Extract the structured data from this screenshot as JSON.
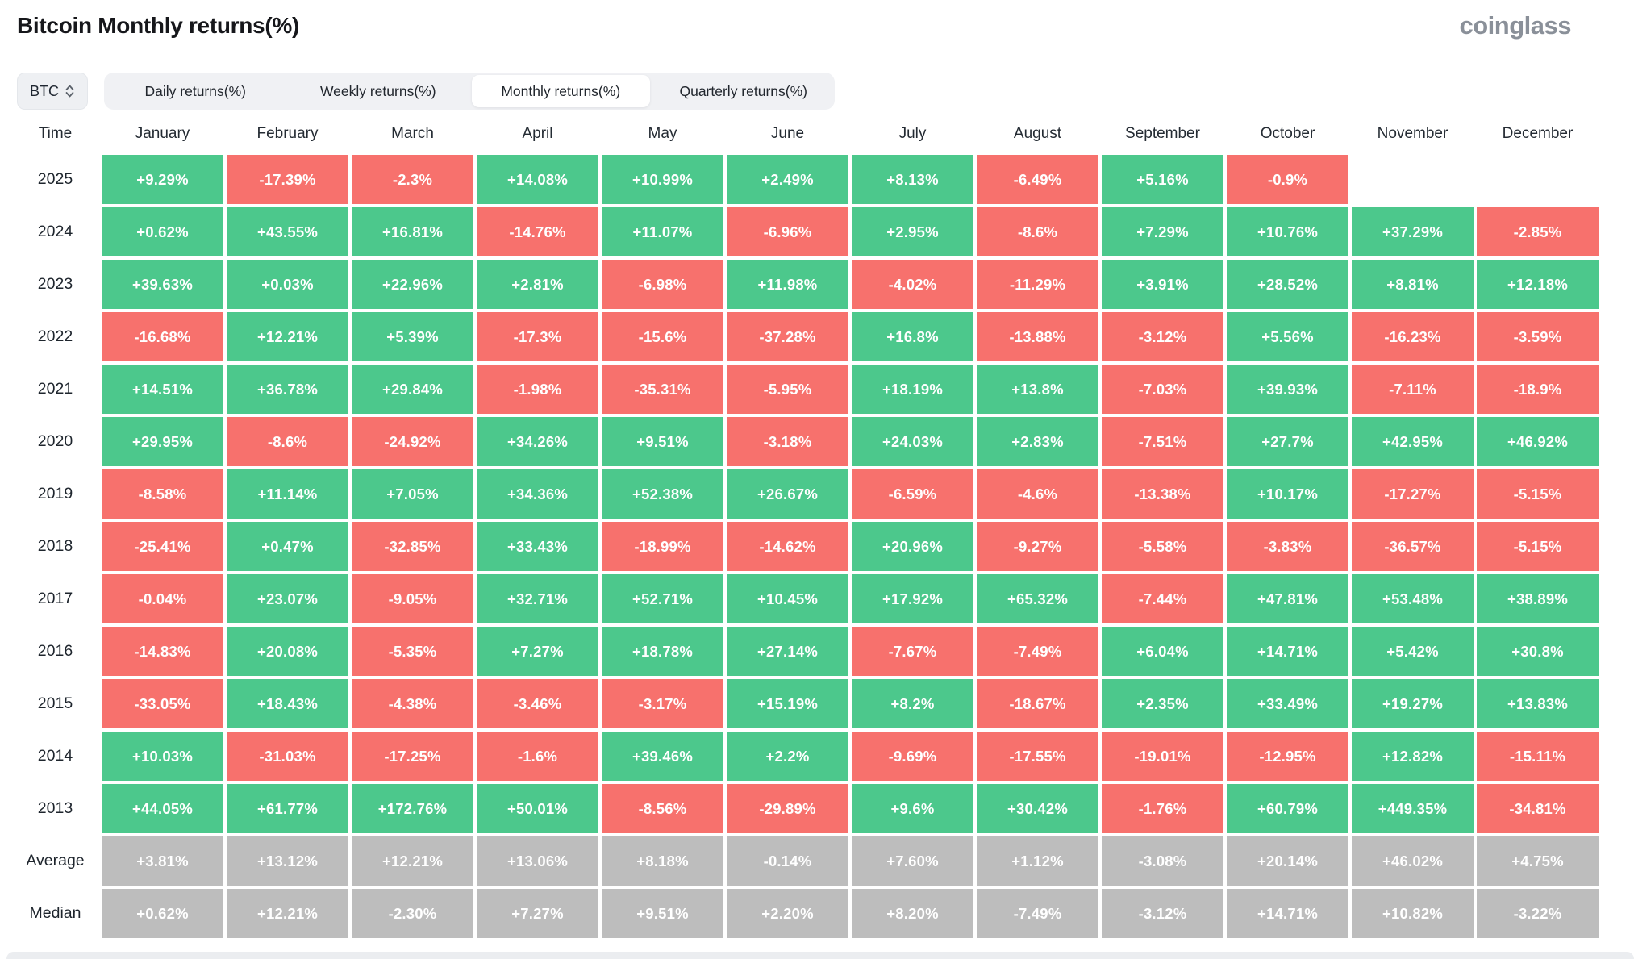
{
  "title": "Bitcoin Monthly returns(%)",
  "logo": "coinglass",
  "colors": {
    "positive": "#4cc88c",
    "negative": "#f7716d",
    "summary": "#bdbdbd"
  },
  "controls": {
    "coin_selector": "BTC",
    "tabs": [
      {
        "id": "daily-returns",
        "label": "Daily returns(%)",
        "active": false
      },
      {
        "id": "weekly-returns",
        "label": "Weekly returns(%)",
        "active": false
      },
      {
        "id": "monthly-returns",
        "label": "Monthly returns(%)",
        "active": true
      },
      {
        "id": "quarterly-returns",
        "label": "Quarterly returns(%)",
        "active": false
      }
    ]
  },
  "table": {
    "columns": [
      "Time",
      "January",
      "February",
      "March",
      "April",
      "May",
      "June",
      "July",
      "August",
      "September",
      "October",
      "November",
      "December"
    ],
    "rows": [
      {
        "label": "2025",
        "type": "year",
        "cells": [
          "+9.29%",
          "-17.39%",
          "-2.3%",
          "+14.08%",
          "+10.99%",
          "+2.49%",
          "+8.13%",
          "-6.49%",
          "+5.16%",
          "-0.9%",
          "",
          ""
        ]
      },
      {
        "label": "2024",
        "type": "year",
        "cells": [
          "+0.62%",
          "+43.55%",
          "+16.81%",
          "-14.76%",
          "+11.07%",
          "-6.96%",
          "+2.95%",
          "-8.6%",
          "+7.29%",
          "+10.76%",
          "+37.29%",
          "-2.85%"
        ]
      },
      {
        "label": "2023",
        "type": "year",
        "cells": [
          "+39.63%",
          "+0.03%",
          "+22.96%",
          "+2.81%",
          "-6.98%",
          "+11.98%",
          "-4.02%",
          "-11.29%",
          "+3.91%",
          "+28.52%",
          "+8.81%",
          "+12.18%"
        ]
      },
      {
        "label": "2022",
        "type": "year",
        "cells": [
          "-16.68%",
          "+12.21%",
          "+5.39%",
          "-17.3%",
          "-15.6%",
          "-37.28%",
          "+16.8%",
          "-13.88%",
          "-3.12%",
          "+5.56%",
          "-16.23%",
          "-3.59%"
        ]
      },
      {
        "label": "2021",
        "type": "year",
        "cells": [
          "+14.51%",
          "+36.78%",
          "+29.84%",
          "-1.98%",
          "-35.31%",
          "-5.95%",
          "+18.19%",
          "+13.8%",
          "-7.03%",
          "+39.93%",
          "-7.11%",
          "-18.9%"
        ]
      },
      {
        "label": "2020",
        "type": "year",
        "cells": [
          "+29.95%",
          "-8.6%",
          "-24.92%",
          "+34.26%",
          "+9.51%",
          "-3.18%",
          "+24.03%",
          "+2.83%",
          "-7.51%",
          "+27.7%",
          "+42.95%",
          "+46.92%"
        ]
      },
      {
        "label": "2019",
        "type": "year",
        "cells": [
          "-8.58%",
          "+11.14%",
          "+7.05%",
          "+34.36%",
          "+52.38%",
          "+26.67%",
          "-6.59%",
          "-4.6%",
          "-13.38%",
          "+10.17%",
          "-17.27%",
          "-5.15%"
        ]
      },
      {
        "label": "2018",
        "type": "year",
        "cells": [
          "-25.41%",
          "+0.47%",
          "-32.85%",
          "+33.43%",
          "-18.99%",
          "-14.62%",
          "+20.96%",
          "-9.27%",
          "-5.58%",
          "-3.83%",
          "-36.57%",
          "-5.15%"
        ]
      },
      {
        "label": "2017",
        "type": "year",
        "cells": [
          "-0.04%",
          "+23.07%",
          "-9.05%",
          "+32.71%",
          "+52.71%",
          "+10.45%",
          "+17.92%",
          "+65.32%",
          "-7.44%",
          "+47.81%",
          "+53.48%",
          "+38.89%"
        ]
      },
      {
        "label": "2016",
        "type": "year",
        "cells": [
          "-14.83%",
          "+20.08%",
          "-5.35%",
          "+7.27%",
          "+18.78%",
          "+27.14%",
          "-7.67%",
          "-7.49%",
          "+6.04%",
          "+14.71%",
          "+5.42%",
          "+30.8%"
        ]
      },
      {
        "label": "2015",
        "type": "year",
        "cells": [
          "-33.05%",
          "+18.43%",
          "-4.38%",
          "-3.46%",
          "-3.17%",
          "+15.19%",
          "+8.2%",
          "-18.67%",
          "+2.35%",
          "+33.49%",
          "+19.27%",
          "+13.83%"
        ]
      },
      {
        "label": "2014",
        "type": "year",
        "cells": [
          "+10.03%",
          "-31.03%",
          "-17.25%",
          "-1.6%",
          "+39.46%",
          "+2.2%",
          "-9.69%",
          "-17.55%",
          "-19.01%",
          "-12.95%",
          "+12.82%",
          "-15.11%"
        ]
      },
      {
        "label": "2013",
        "type": "year",
        "cells": [
          "+44.05%",
          "+61.77%",
          "+172.76%",
          "+50.01%",
          "-8.56%",
          "-29.89%",
          "+9.6%",
          "+30.42%",
          "-1.76%",
          "+60.79%",
          "+449.35%",
          "-34.81%"
        ]
      },
      {
        "label": "Average",
        "type": "summary",
        "cells": [
          "+3.81%",
          "+13.12%",
          "+12.21%",
          "+13.06%",
          "+8.18%",
          "-0.14%",
          "+7.60%",
          "+1.12%",
          "-3.08%",
          "+20.14%",
          "+46.02%",
          "+4.75%"
        ]
      },
      {
        "label": "Median",
        "type": "summary",
        "cells": [
          "+0.62%",
          "+12.21%",
          "-2.30%",
          "+7.27%",
          "+9.51%",
          "+2.20%",
          "+8.20%",
          "-7.49%",
          "-3.12%",
          "+14.71%",
          "+10.82%",
          "-3.22%"
        ]
      }
    ]
  }
}
